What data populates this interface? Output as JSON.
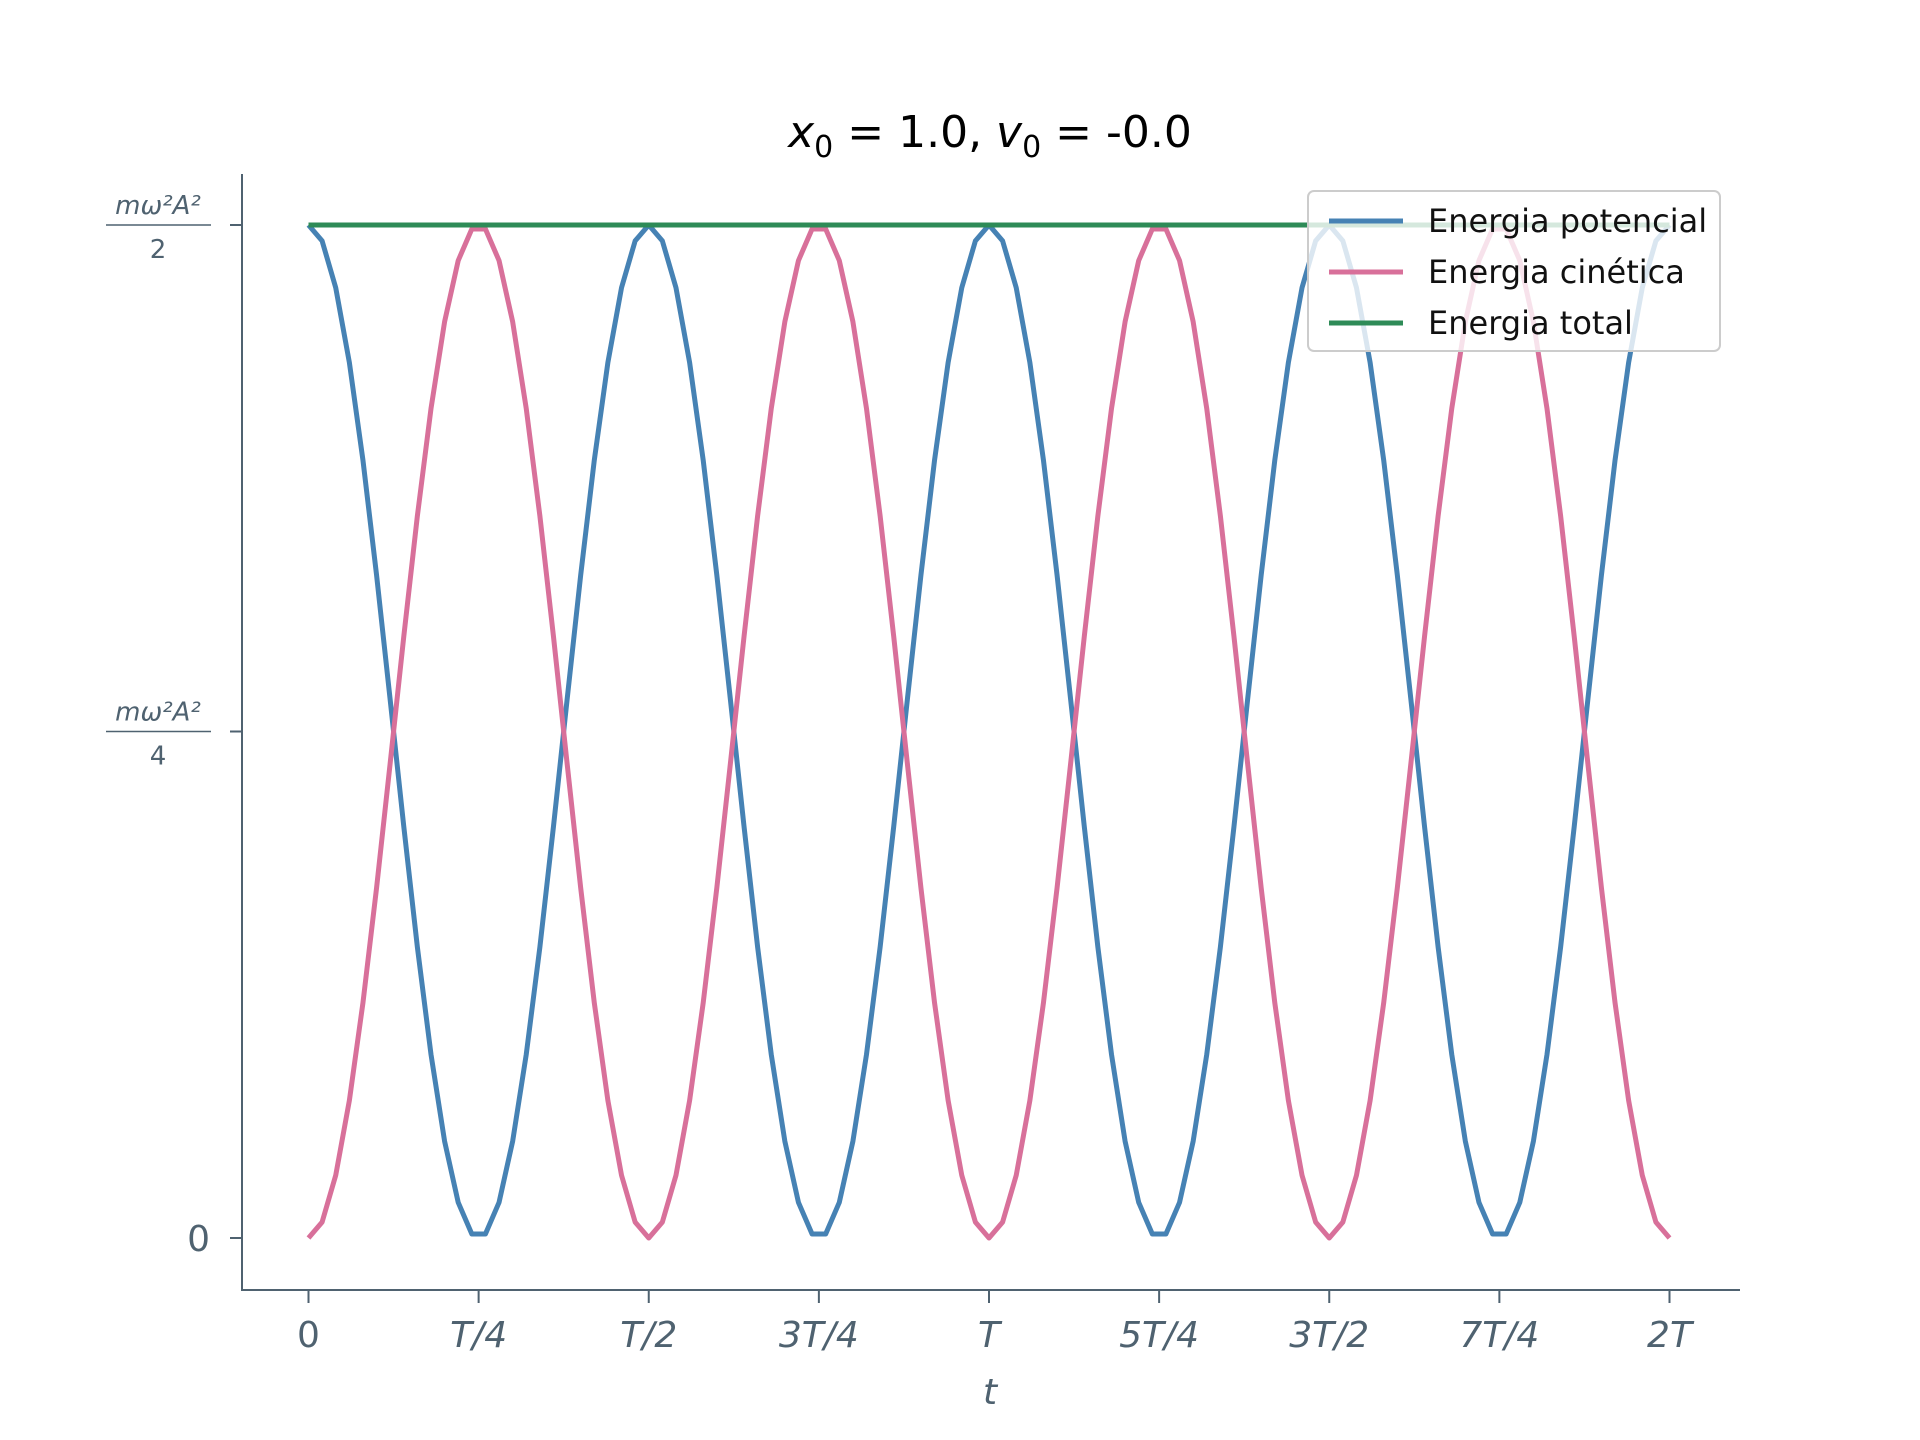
{
  "chart_data": {
    "type": "line",
    "title": {
      "x_sym": "x",
      "x_sub": "0",
      "x_rest": " = 1.0, ",
      "v_sym": "v",
      "v_sub": "0",
      "v_rest": " = -0.0"
    },
    "xlabel": "t",
    "ylabel": "",
    "xlim": [
      -0.1,
      2.1
    ],
    "ylim": [
      -0.05,
      1.05
    ],
    "x_unit": "T",
    "x_ticks": [
      {
        "value": 0,
        "label": "0",
        "italic": false
      },
      {
        "value": 0.25,
        "label": "T/4",
        "italic": true
      },
      {
        "value": 0.5,
        "label": "T/2",
        "italic": true
      },
      {
        "value": 0.75,
        "label": "3T/4",
        "italic": true
      },
      {
        "value": 1.0,
        "label": "T",
        "italic": true
      },
      {
        "value": 1.25,
        "label": "5T/4",
        "italic": true
      },
      {
        "value": 1.5,
        "label": "3T/2",
        "italic": true
      },
      {
        "value": 1.75,
        "label": "7T/4",
        "italic": true
      },
      {
        "value": 2.0,
        "label": "2T",
        "italic": true
      }
    ],
    "y_ticks": [
      {
        "value": 0,
        "label": "0"
      },
      {
        "value": 0.5,
        "numerator": "mω²A²",
        "denominator": "4"
      },
      {
        "value": 1.0,
        "numerator": "mω²A²",
        "denominator": "2"
      }
    ],
    "y_unit": "mω²A²/2",
    "grid": false,
    "legend_position": "top-right",
    "series": [
      {
        "name": "Energia potencial",
        "color": "#4682b4",
        "function": "cos^2(2πt)",
        "x_start": 0,
        "x_end": 2,
        "samples": 101
      },
      {
        "name": "Energia cinética",
        "color": "#d8709a",
        "function": "sin^2(2πt)",
        "x_start": 0,
        "x_end": 2,
        "samples": 101
      },
      {
        "name": "Energia total",
        "color": "#2e8b57",
        "function": "1",
        "x_start": 0,
        "x_end": 2,
        "samples": 2
      }
    ]
  }
}
